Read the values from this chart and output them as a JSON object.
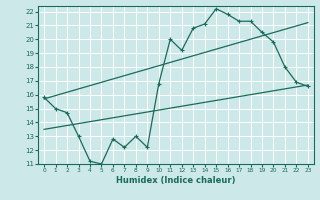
{
  "xlabel": "Humidex (Indice chaleur)",
  "bg_color": "#cce8e8",
  "line_color": "#1a6b5a",
  "grid_color": "#ffffff",
  "xlim": [
    -0.5,
    23.5
  ],
  "ylim": [
    11,
    22.4
  ],
  "xticks": [
    0,
    1,
    2,
    3,
    4,
    5,
    6,
    7,
    8,
    9,
    10,
    11,
    12,
    13,
    14,
    15,
    16,
    17,
    18,
    19,
    20,
    21,
    22,
    23
  ],
  "yticks": [
    11,
    12,
    13,
    14,
    15,
    16,
    17,
    18,
    19,
    20,
    21,
    22
  ],
  "line1_x": [
    0,
    1,
    2,
    3,
    4,
    5,
    6,
    7,
    8,
    9,
    10,
    11,
    12,
    13,
    14,
    15,
    16,
    17,
    18,
    19,
    20,
    21,
    22,
    23
  ],
  "line1_y": [
    15.8,
    15.0,
    14.7,
    13.0,
    11.2,
    11.0,
    12.8,
    12.2,
    13.0,
    12.2,
    16.8,
    20.0,
    19.2,
    20.8,
    21.1,
    22.2,
    21.8,
    21.3,
    21.3,
    20.5,
    19.8,
    18.0,
    16.9,
    16.6
  ],
  "line2_x": [
    0,
    23
  ],
  "line2_y": [
    13.5,
    16.7
  ],
  "line3_x": [
    0,
    23
  ],
  "line3_y": [
    15.7,
    21.2
  ]
}
